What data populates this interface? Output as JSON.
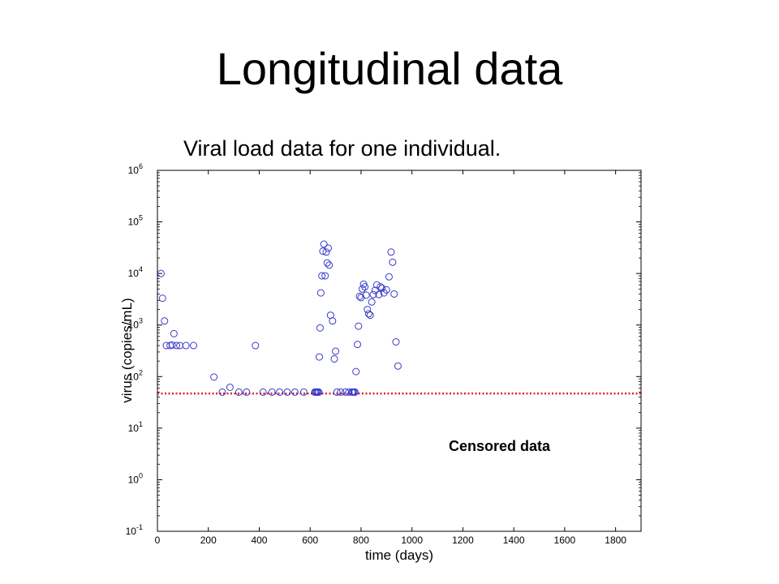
{
  "slide": {
    "title": "Longitudinal data",
    "subtitle": "Viral load data for one individual."
  },
  "chart_data": {
    "type": "scatter",
    "title": "",
    "xlabel": "time (days)",
    "ylabel": "virus (copies/mL)",
    "xlim": [
      0,
      1900
    ],
    "ylim": [
      0.1,
      1000000
    ],
    "y_scale": "log",
    "x_ticks": [
      0,
      200,
      400,
      600,
      800,
      1000,
      1200,
      1400,
      1600,
      1800
    ],
    "y_ticks": [
      {
        "value": 0.1,
        "base": "10",
        "exp": "-1"
      },
      {
        "value": 1,
        "base": "10",
        "exp": "0"
      },
      {
        "value": 10,
        "base": "10",
        "exp": "1"
      },
      {
        "value": 100,
        "base": "10",
        "exp": "2"
      },
      {
        "value": 1000,
        "base": "10",
        "exp": "3"
      },
      {
        "value": 10000,
        "base": "10",
        "exp": "4"
      },
      {
        "value": 100000,
        "base": "10",
        "exp": "5"
      },
      {
        "value": 1000000,
        "base": "10",
        "exp": "6"
      }
    ],
    "grid": false,
    "marker_color": "#3a3ac8",
    "detection_limit": {
      "value": 47,
      "color": "#e02020",
      "style": "dotted"
    },
    "annotation": "Censored data",
    "points": [
      {
        "x": 14,
        "y": 10000
      },
      {
        "x": 20,
        "y": 3300
      },
      {
        "x": 28,
        "y": 1200
      },
      {
        "x": 35,
        "y": 400
      },
      {
        "x": 50,
        "y": 400
      },
      {
        "x": 58,
        "y": 410
      },
      {
        "x": 65,
        "y": 680
      },
      {
        "x": 75,
        "y": 400
      },
      {
        "x": 88,
        "y": 400
      },
      {
        "x": 112,
        "y": 400
      },
      {
        "x": 142,
        "y": 400
      },
      {
        "x": 222,
        "y": 98
      },
      {
        "x": 255,
        "y": 50
      },
      {
        "x": 285,
        "y": 62
      },
      {
        "x": 320,
        "y": 50
      },
      {
        "x": 350,
        "y": 50
      },
      {
        "x": 385,
        "y": 400
      },
      {
        "x": 415,
        "y": 50
      },
      {
        "x": 450,
        "y": 50
      },
      {
        "x": 480,
        "y": 50
      },
      {
        "x": 510,
        "y": 50
      },
      {
        "x": 540,
        "y": 50
      },
      {
        "x": 575,
        "y": 50
      },
      {
        "x": 618,
        "y": 50
      },
      {
        "x": 622,
        "y": 50
      },
      {
        "x": 626,
        "y": 50
      },
      {
        "x": 630,
        "y": 50
      },
      {
        "x": 634,
        "y": 50
      },
      {
        "x": 636,
        "y": 240
      },
      {
        "x": 639,
        "y": 880
      },
      {
        "x": 642,
        "y": 4200
      },
      {
        "x": 646,
        "y": 9000
      },
      {
        "x": 650,
        "y": 27000
      },
      {
        "x": 654,
        "y": 37000
      },
      {
        "x": 659,
        "y": 9000
      },
      {
        "x": 663,
        "y": 26000
      },
      {
        "x": 667,
        "y": 16000
      },
      {
        "x": 671,
        "y": 31000
      },
      {
        "x": 675,
        "y": 14500
      },
      {
        "x": 680,
        "y": 1550
      },
      {
        "x": 688,
        "y": 1200
      },
      {
        "x": 695,
        "y": 220
      },
      {
        "x": 700,
        "y": 310
      },
      {
        "x": 705,
        "y": 50
      },
      {
        "x": 720,
        "y": 50
      },
      {
        "x": 738,
        "y": 50
      },
      {
        "x": 752,
        "y": 50
      },
      {
        "x": 764,
        "y": 50
      },
      {
        "x": 768,
        "y": 50
      },
      {
        "x": 772,
        "y": 50
      },
      {
        "x": 776,
        "y": 50
      },
      {
        "x": 780,
        "y": 125
      },
      {
        "x": 786,
        "y": 420
      },
      {
        "x": 790,
        "y": 950
      },
      {
        "x": 794,
        "y": 3600
      },
      {
        "x": 800,
        "y": 3400
      },
      {
        "x": 805,
        "y": 5000
      },
      {
        "x": 810,
        "y": 6200
      },
      {
        "x": 815,
        "y": 5500
      },
      {
        "x": 820,
        "y": 3800
      },
      {
        "x": 825,
        "y": 2000
      },
      {
        "x": 830,
        "y": 1650
      },
      {
        "x": 836,
        "y": 1550
      },
      {
        "x": 842,
        "y": 2800
      },
      {
        "x": 848,
        "y": 3900
      },
      {
        "x": 855,
        "y": 4700
      },
      {
        "x": 862,
        "y": 6000
      },
      {
        "x": 870,
        "y": 3900
      },
      {
        "x": 876,
        "y": 5500
      },
      {
        "x": 882,
        "y": 5200
      },
      {
        "x": 890,
        "y": 4200
      },
      {
        "x": 900,
        "y": 4800
      },
      {
        "x": 910,
        "y": 8600
      },
      {
        "x": 918,
        "y": 26000
      },
      {
        "x": 924,
        "y": 16500
      },
      {
        "x": 930,
        "y": 4000
      },
      {
        "x": 937,
        "y": 470
      },
      {
        "x": 945,
        "y": 160
      }
    ]
  }
}
